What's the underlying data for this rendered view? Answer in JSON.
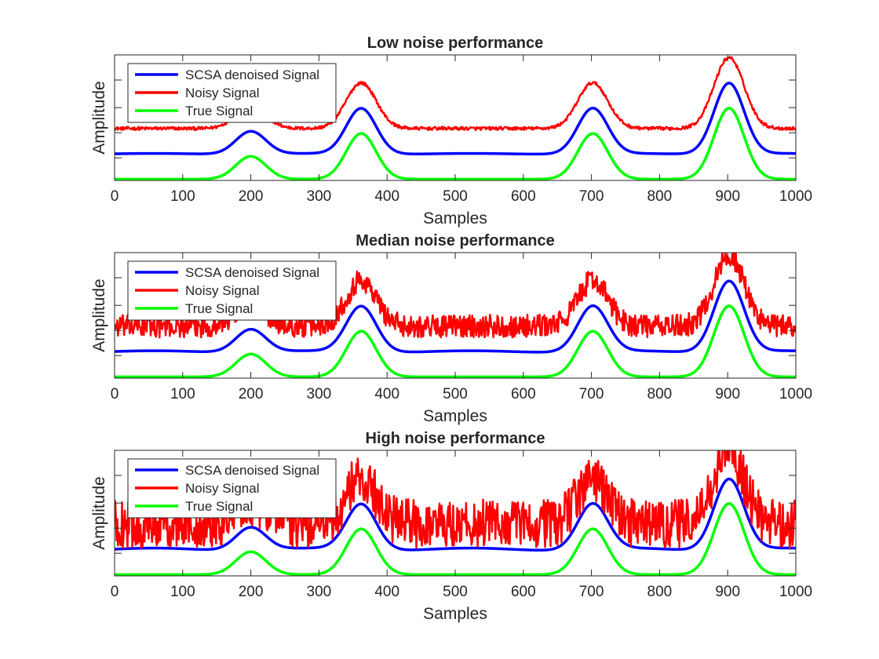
{
  "chart_data": [
    {
      "type": "line",
      "title": "Low noise performance",
      "xlabel": "Samples",
      "ylabel": "Amplitude",
      "xlim": [
        0,
        1000
      ],
      "xticks": [
        "0",
        "100",
        "200",
        "300",
        "400",
        "500",
        "600",
        "700",
        "800",
        "900",
        "1000"
      ],
      "grid": false,
      "legend_position": "top-left",
      "noise_level": 0.04,
      "series": [
        {
          "name": "SCSA denoised Signal",
          "color": "#0000ff",
          "offset": 1.0,
          "noise": 0,
          "smoothed": true
        },
        {
          "name": "Noisy Signal",
          "color": "#ff0000",
          "offset": 2.0,
          "noise": 1,
          "smoothed": false
        },
        {
          "name": "True Signal",
          "color": "#00ff00",
          "offset": 0.0,
          "noise": 0,
          "smoothed": false
        }
      ]
    },
    {
      "type": "line",
      "title": "Median noise performance",
      "xlabel": "Samples",
      "ylabel": "Amplitude",
      "xlim": [
        0,
        1000
      ],
      "xticks": [
        "0",
        "100",
        "200",
        "300",
        "400",
        "500",
        "600",
        "700",
        "800",
        "900",
        "1000"
      ],
      "grid": false,
      "legend_position": "top-left",
      "noise_level": 0.28,
      "series": [
        {
          "name": "SCSA denoised Signal",
          "color": "#0000ff",
          "offset": 1.0,
          "noise": 0,
          "smoothed": true
        },
        {
          "name": "Noisy Signal",
          "color": "#ff0000",
          "offset": 2.0,
          "noise": 1,
          "smoothed": false
        },
        {
          "name": "True Signal",
          "color": "#00ff00",
          "offset": 0.0,
          "noise": 0,
          "smoothed": false
        }
      ]
    },
    {
      "type": "line",
      "title": "High noise performance",
      "xlabel": "Samples",
      "ylabel": "Amplitude",
      "xlim": [
        0,
        1000
      ],
      "xticks": [
        "0",
        "100",
        "200",
        "300",
        "400",
        "500",
        "600",
        "700",
        "800",
        "900",
        "1000"
      ],
      "grid": false,
      "legend_position": "top-left",
      "noise_level": 0.6,
      "series": [
        {
          "name": "SCSA denoised Signal",
          "color": "#0000ff",
          "offset": 1.0,
          "noise": 0,
          "smoothed": true
        },
        {
          "name": "Noisy Signal",
          "color": "#ff0000",
          "offset": 2.0,
          "noise": 1,
          "smoothed": false
        },
        {
          "name": "True Signal",
          "color": "#00ff00",
          "offset": 0.0,
          "noise": 0,
          "smoothed": false
        }
      ]
    }
  ],
  "true_signal_peaks": [
    {
      "center": 200,
      "amplitude": 0.9
    },
    {
      "center": 362,
      "amplitude": 1.8
    },
    {
      "center": 702,
      "amplitude": 1.8
    },
    {
      "center": 902,
      "amplitude": 2.8
    }
  ]
}
